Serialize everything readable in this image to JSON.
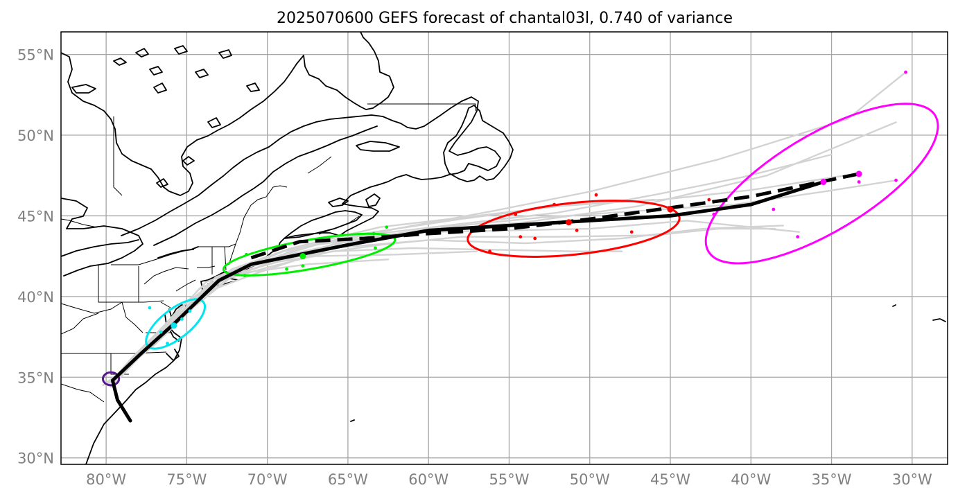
{
  "chart_data": {
    "type": "map",
    "title": "2025070600 GEFS forecast of chantal03l, 0.740 of variance",
    "lon_range": [
      -82.8,
      -27.8
    ],
    "lat_range": [
      29.6,
      56.4
    ],
    "x_ticks": [
      {
        "lon": -80,
        "label": "80°W"
      },
      {
        "lon": -75,
        "label": "75°W"
      },
      {
        "lon": -70,
        "label": "70°W"
      },
      {
        "lon": -65,
        "label": "65°W"
      },
      {
        "lon": -60,
        "label": "60°W"
      },
      {
        "lon": -55,
        "label": "55°W"
      },
      {
        "lon": -50,
        "label": "50°W"
      },
      {
        "lon": -45,
        "label": "45°W"
      },
      {
        "lon": -40,
        "label": "40°W"
      },
      {
        "lon": -35,
        "label": "35°W"
      },
      {
        "lon": -30,
        "label": "30°W"
      }
    ],
    "y_ticks": [
      {
        "lat": 55,
        "label": "55°N"
      },
      {
        "lat": 50,
        "label": "50°N"
      },
      {
        "lat": 45,
        "label": "45°N"
      },
      {
        "lat": 40,
        "label": "40°N"
      },
      {
        "lat": 35,
        "label": "35°N"
      },
      {
        "lat": 30,
        "label": "30°N"
      }
    ],
    "grid": true,
    "ensemble_mean_track": [
      [
        -78.5,
        32.3
      ],
      [
        -79.3,
        33.6
      ],
      [
        -79.6,
        34.8
      ],
      [
        -77.8,
        36.5
      ],
      [
        -75.8,
        38.3
      ],
      [
        -73.0,
        41.0
      ],
      [
        -71.0,
        42.0
      ],
      [
        -68.0,
        42.6
      ],
      [
        -65.0,
        43.2
      ],
      [
        -60.0,
        44.1
      ],
      [
        -55.0,
        44.4
      ],
      [
        -50.0,
        44.7
      ],
      [
        -45.0,
        45.0
      ],
      [
        -40.0,
        45.7
      ],
      [
        -35.5,
        47.1
      ]
    ],
    "dashed_track": [
      [
        -71.0,
        42.4
      ],
      [
        -68.0,
        43.4
      ],
      [
        -64.0,
        43.6
      ],
      [
        -60.0,
        43.9
      ],
      [
        -55.0,
        44.2
      ],
      [
        -50.0,
        44.8
      ],
      [
        -45.0,
        45.5
      ],
      [
        -40.0,
        46.2
      ],
      [
        -33.3,
        47.6
      ]
    ],
    "member_tracks": [
      [
        [
          -79.8,
          34.6
        ],
        [
          -78.0,
          36.3
        ],
        [
          -76.0,
          38.0
        ],
        [
          -73.0,
          41.2
        ],
        [
          -69.0,
          42.8
        ],
        [
          -64.0,
          43.8
        ],
        [
          -58.0,
          44.5
        ],
        [
          -52.0,
          45.2
        ],
        [
          -46.0,
          46.3
        ],
        [
          -40.5,
          47.4
        ],
        [
          -35.0,
          48.8
        ]
      ],
      [
        [
          -79.6,
          34.7
        ],
        [
          -77.5,
          36.8
        ],
        [
          -75.0,
          39.0
        ],
        [
          -72.0,
          41.5
        ],
        [
          -68.0,
          43.0
        ],
        [
          -62.0,
          44.2
        ],
        [
          -56.0,
          45.3
        ],
        [
          -50.0,
          46.5
        ],
        [
          -42.0,
          48.5
        ],
        [
          -34.0,
          51.0
        ],
        [
          -30.4,
          53.9
        ]
      ],
      [
        [
          -79.7,
          34.8
        ],
        [
          -77.0,
          37.0
        ],
        [
          -74.5,
          39.4
        ],
        [
          -71.5,
          41.8
        ],
        [
          -67.0,
          43.2
        ],
        [
          -61.0,
          44.0
        ],
        [
          -54.0,
          44.6
        ],
        [
          -47.0,
          45.6
        ],
        [
          -39.0,
          47.5
        ],
        [
          -31.0,
          50.8
        ]
      ],
      [
        [
          -79.4,
          34.7
        ],
        [
          -77.6,
          36.6
        ],
        [
          -75.5,
          38.7
        ],
        [
          -72.5,
          41.3
        ],
        [
          -68.0,
          42.5
        ],
        [
          -63.0,
          43.2
        ],
        [
          -58.0,
          43.7
        ],
        [
          -52.0,
          43.7
        ],
        [
          -46.0,
          43.8
        ],
        [
          -42.0,
          44.2
        ],
        [
          -38.5,
          44.2
        ]
      ],
      [
        [
          -79.9,
          34.6
        ],
        [
          -78.0,
          36.2
        ],
        [
          -76.5,
          37.8
        ],
        [
          -73.5,
          40.8
        ],
        [
          -70.0,
          41.8
        ],
        [
          -66.0,
          42.8
        ],
        [
          -61.0,
          43.0
        ],
        [
          -56.0,
          42.9
        ],
        [
          -51.0,
          42.8
        ],
        [
          -48.0,
          42.8
        ]
      ],
      [
        [
          -80.2,
          34.5
        ],
        [
          -78.5,
          35.8
        ],
        [
          -77.0,
          37.5
        ],
        [
          -74.0,
          40.2
        ],
        [
          -70.5,
          41.5
        ],
        [
          -66.0,
          43.0
        ],
        [
          -60.0,
          43.5
        ],
        [
          -54.0,
          43.3
        ],
        [
          -48.0,
          43.6
        ],
        [
          -43.0,
          44.2
        ],
        [
          -38.0,
          44.4
        ]
      ],
      [
        [
          -79.5,
          34.9
        ],
        [
          -77.8,
          36.8
        ],
        [
          -75.2,
          38.9
        ],
        [
          -72.8,
          41.0
        ],
        [
          -69.5,
          42.2
        ],
        [
          -65.0,
          43.5
        ],
        [
          -59.0,
          44.3
        ],
        [
          -53.0,
          44.9
        ],
        [
          -47.0,
          45.3
        ],
        [
          -41.0,
          45.7
        ],
        [
          -35.5,
          46.5
        ],
        [
          -31.0,
          47.2
        ]
      ],
      [
        [
          -79.7,
          34.4
        ],
        [
          -78.2,
          36.0
        ],
        [
          -76.8,
          37.6
        ],
        [
          -74.2,
          40.5
        ],
        [
          -71.0,
          41.9
        ],
        [
          -67.0,
          42.5
        ],
        [
          -62.0,
          42.6
        ],
        [
          -57.0,
          42.8
        ]
      ],
      [
        [
          -79.3,
          35.1
        ],
        [
          -77.2,
          37.2
        ],
        [
          -74.8,
          39.6
        ],
        [
          -72.2,
          41.7
        ],
        [
          -68.5,
          43.0
        ],
        [
          -63.0,
          44.3
        ],
        [
          -57.0,
          45.0
        ],
        [
          -51.0,
          45.7
        ],
        [
          -45.5,
          46.0
        ],
        [
          -40.0,
          46.6
        ],
        [
          -33.5,
          47.6
        ]
      ],
      [
        [
          -80.0,
          34.5
        ],
        [
          -78.8,
          35.6
        ],
        [
          -77.5,
          37.0
        ],
        [
          -75.5,
          39.2
        ],
        [
          -73.5,
          40.8
        ],
        [
          -71.2,
          41.5
        ],
        [
          -67.5,
          42.0
        ],
        [
          -62.5,
          42.3
        ]
      ],
      [
        [
          -79.8,
          34.6
        ],
        [
          -78.4,
          36.2
        ],
        [
          -76.2,
          38.4
        ],
        [
          -73.8,
          40.9
        ],
        [
          -70.0,
          42.3
        ],
        [
          -65.0,
          43.4
        ],
        [
          -60.0,
          44.0
        ],
        [
          -55.0,
          44.1
        ],
        [
          -50.0,
          44.2
        ],
        [
          -44.0,
          44.7
        ],
        [
          -37.0,
          44.0
        ]
      ],
      [
        [
          -79.6,
          34.8
        ],
        [
          -77.4,
          36.9
        ],
        [
          -75.6,
          38.5
        ],
        [
          -74.6,
          39.8
        ],
        [
          -73.2,
          41.2
        ],
        [
          -69.0,
          42.8
        ],
        [
          -64.0,
          43.9
        ],
        [
          -58.0,
          44.8
        ],
        [
          -52.0,
          45.6
        ],
        [
          -46.0,
          46.0
        ]
      ]
    ],
    "ellipses": [
      {
        "color": "#551a8b",
        "lon": -79.7,
        "lat": 34.9,
        "rx_deg": 0.5,
        "ry_deg": 0.4,
        "angle_deg": 0
      },
      {
        "color": "#00e5ee",
        "lon": -75.7,
        "lat": 38.3,
        "rx_deg": 2.2,
        "ry_deg": 0.9,
        "angle_deg": -38
      },
      {
        "color": "#00ee00",
        "lon": -67.4,
        "lat": 42.6,
        "rx_deg": 5.4,
        "ry_deg": 0.9,
        "angle_deg": -10
      },
      {
        "color": "#ff0000",
        "lon": -51.0,
        "lat": 44.2,
        "rx_deg": 6.6,
        "ry_deg": 1.6,
        "angle_deg": -6
      },
      {
        "color": "#ff00ff",
        "lon": -35.6,
        "lat": 47.0,
        "rx_deg": 8.2,
        "ry_deg": 3.0,
        "angle_deg": -31
      }
    ],
    "points": [
      {
        "color": "#00e5ee",
        "lon": -75.8,
        "lat": 38.2,
        "big": true
      },
      {
        "color": "#00e5ee",
        "lon": -77.3,
        "lat": 39.3
      },
      {
        "color": "#00e5ee",
        "lon": -76.6,
        "lat": 37.8
      },
      {
        "color": "#00e5ee",
        "lon": -74.8,
        "lat": 39.1
      },
      {
        "color": "#00e5ee",
        "lon": -75.3,
        "lat": 38.6
      },
      {
        "color": "#00e5ee",
        "lon": -76.2,
        "lat": 37.1
      },
      {
        "color": "#00ee00",
        "lon": -67.8,
        "lat": 42.5,
        "big": true
      },
      {
        "color": "#00ee00",
        "lon": -63.4,
        "lat": 43.9
      },
      {
        "color": "#00ee00",
        "lon": -62.6,
        "lat": 44.3
      },
      {
        "color": "#00ee00",
        "lon": -63.3,
        "lat": 43.0
      },
      {
        "color": "#00ee00",
        "lon": -68.8,
        "lat": 41.7
      },
      {
        "color": "#00ee00",
        "lon": -71.3,
        "lat": 42.6
      },
      {
        "color": "#00ee00",
        "lon": -67.8,
        "lat": 41.9
      },
      {
        "color": "#00ee00",
        "lon": -71.4,
        "lat": 41.3
      },
      {
        "color": "#ff0000",
        "lon": -51.3,
        "lat": 44.6,
        "big": true
      },
      {
        "color": "#ff0000",
        "lon": -49.6,
        "lat": 46.3
      },
      {
        "color": "#ff0000",
        "lon": -52.2,
        "lat": 45.7
      },
      {
        "color": "#ff0000",
        "lon": -54.6,
        "lat": 45.1
      },
      {
        "color": "#ff0000",
        "lon": -54.3,
        "lat": 43.7
      },
      {
        "color": "#ff0000",
        "lon": -53.4,
        "lat": 43.6
      },
      {
        "color": "#ff0000",
        "lon": -50.8,
        "lat": 44.1
      },
      {
        "color": "#ff0000",
        "lon": -47.4,
        "lat": 44.0
      },
      {
        "color": "#ff0000",
        "lon": -56.2,
        "lat": 42.8
      },
      {
        "color": "#ff0000",
        "lon": -45.0,
        "lat": 45.4,
        "big": true
      },
      {
        "color": "#ff0000",
        "lon": -42.6,
        "lat": 46.0
      },
      {
        "color": "#ff00ff",
        "lon": -35.5,
        "lat": 47.1,
        "big": true
      },
      {
        "color": "#ff00ff",
        "lon": -33.3,
        "lat": 47.6,
        "big": true
      },
      {
        "color": "#ff00ff",
        "lon": -30.4,
        "lat": 53.9
      },
      {
        "color": "#ff00ff",
        "lon": -31.0,
        "lat": 47.2
      },
      {
        "color": "#ff00ff",
        "lon": -33.3,
        "lat": 47.1
      },
      {
        "color": "#ff00ff",
        "lon": -38.6,
        "lat": 45.4
      },
      {
        "color": "#ff00ff",
        "lon": -37.1,
        "lat": 43.7
      },
      {
        "color": "#ff00ff",
        "lon": -42.3,
        "lat": 45.1
      }
    ]
  }
}
